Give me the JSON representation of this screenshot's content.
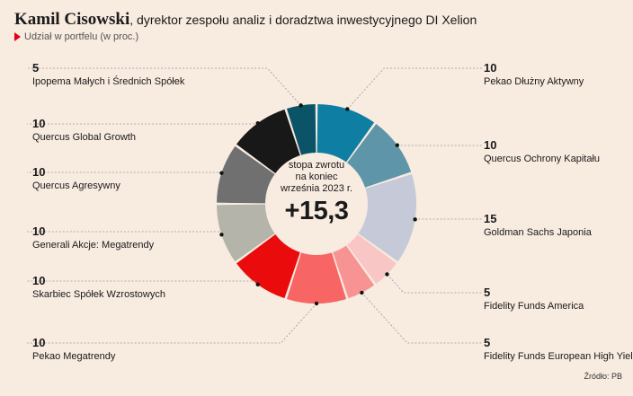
{
  "header": {
    "name": "Kamil Cisowski",
    "rest": ", dyrektor zespołu analiz i doradztwa inwestycyjnego DI Xelion",
    "subtitle": "Udział w portfelu (w proc.)"
  },
  "center": {
    "caption_lines": [
      "stopa zwrotu",
      "na koniec",
      "września 2023 r."
    ],
    "value": "+15,3"
  },
  "source": "Źródło: PB",
  "chart_data": {
    "type": "pie",
    "donut": true,
    "title": "Udział w portfelu (w proc.)",
    "slices": [
      {
        "label": "Pekao Dłużny Aktywny",
        "value": 10,
        "value_label": "10",
        "color": "#0f7ea3"
      },
      {
        "label": "Quercus Ochrony Kapitału",
        "value": 10,
        "value_label": "10",
        "color": "#5e95a8"
      },
      {
        "label": "Goldman Sachs Japonia",
        "value": 15,
        "value_label": "15",
        "color": "#c6c9d8"
      },
      {
        "label": "Fidelity Funds America",
        "value": 5,
        "value_label": "5",
        "color": "#f9c6c6"
      },
      {
        "label": "Fidelity Funds European High Yield",
        "value": 5,
        "value_label": "5",
        "color": "#f79393"
      },
      {
        "label": "Pekao Megatrendy",
        "value": 10,
        "value_label": "10",
        "color": "#f76565"
      },
      {
        "label": "Skarbiec Spółek Wzrostowych",
        "value": 10,
        "value_label": "10",
        "color": "#ea0c0c"
      },
      {
        "label": "Generali Akcje: Megatrendy",
        "value": 10,
        "value_label": "10",
        "color": "#b4b4aa"
      },
      {
        "label": "Quercus Agresywny",
        "value": 10,
        "value_label": "10",
        "color": "#707070"
      },
      {
        "label": "Quercus Global Growth",
        "value": 10,
        "value_label": "10",
        "color": "#181818"
      },
      {
        "label": "Ipopema Małych i Średnich Spółek",
        "value": 5,
        "value_label": "5",
        "color": "#0b5468"
      }
    ]
  }
}
